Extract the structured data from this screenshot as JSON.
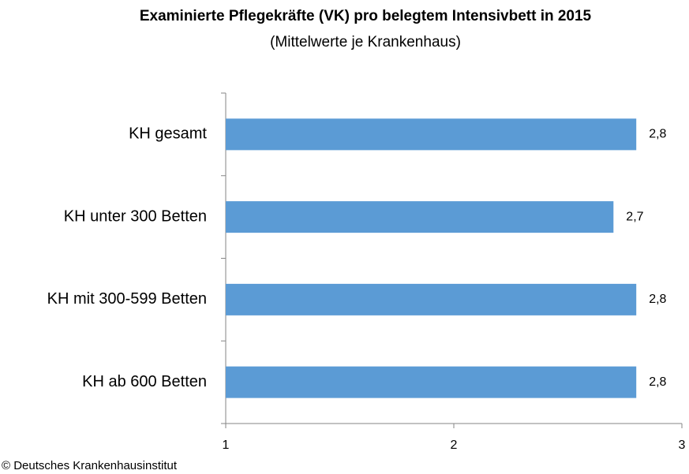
{
  "chart_data": {
    "type": "bar",
    "orientation": "horizontal",
    "title": "Examinierte Pflegekräfte (VK) pro belegtem Intensivbett in 2015",
    "subtitle": "(Mittelwerte je Krankenhaus)",
    "categories": [
      "KH gesamt",
      "KH unter 300 Betten",
      "KH mit 300-599 Betten",
      "KH ab 600 Betten"
    ],
    "values": [
      2.8,
      2.7,
      2.8,
      2.8
    ],
    "value_labels": [
      "2,8",
      "2,7",
      "2,8",
      "2,8"
    ],
    "color": "#5b9bd5",
    "xlim": [
      1,
      3
    ],
    "xticks": [
      1,
      2,
      3
    ],
    "source": "© Deutsches Krankenhausinstitut"
  }
}
